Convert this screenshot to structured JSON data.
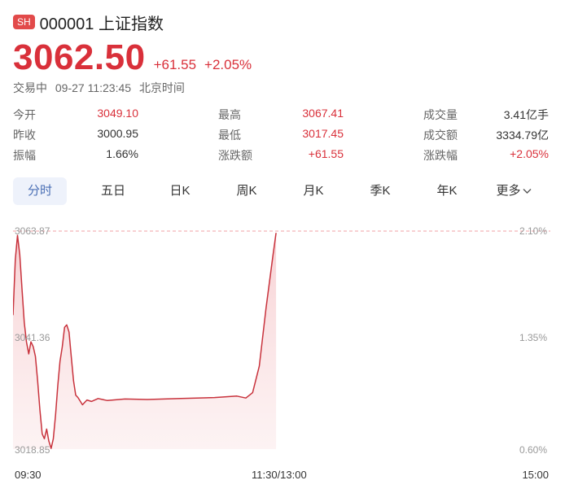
{
  "header": {
    "badge": "SH",
    "code_name": "000001 上证指数",
    "price": "3062.50",
    "change": "+61.55",
    "change_pct": "+2.05%",
    "status": "交易中",
    "datetime": "09-27 11:23:45",
    "timezone": "北京时间"
  },
  "stats": [
    [
      {
        "k": "今开",
        "v": "3049.10",
        "red": true
      },
      {
        "k": "最高",
        "v": "3067.41",
        "red": true
      },
      {
        "k": "成交量",
        "v": "3.41亿手",
        "red": false
      }
    ],
    [
      {
        "k": "昨收",
        "v": "3000.95",
        "red": false
      },
      {
        "k": "最低",
        "v": "3017.45",
        "red": true
      },
      {
        "k": "成交额",
        "v": "3334.79亿",
        "red": false
      }
    ],
    [
      {
        "k": "振幅",
        "v": "1.66%",
        "red": false
      },
      {
        "k": "涨跌额",
        "v": "+61.55",
        "red": true
      },
      {
        "k": "涨跌幅",
        "v": "+2.05%",
        "red": true
      }
    ]
  ],
  "tabs": [
    "分时",
    "五日",
    "日K",
    "周K",
    "月K",
    "季K",
    "年K",
    "更多"
  ],
  "colors": {
    "up": "#d9303a",
    "accent": "#4a6fb5"
  },
  "chart_data": {
    "type": "line",
    "y_labels_left": [
      "3063.87",
      "3041.36",
      "3018.85"
    ],
    "y_labels_right": [
      "2.10%",
      "1.35%",
      "0.60%"
    ],
    "x_labels": [
      "09:30",
      "11:30/13:00",
      "15:00"
    ],
    "ylim": [
      3018.85,
      3063.87
    ],
    "x_unit": "minutes since 09:30 (0-240 trading minutes)",
    "series": [
      {
        "values": [
          [
            0,
            3046.5
          ],
          [
            1,
            3058.0
          ],
          [
            2,
            3063.0
          ],
          [
            3,
            3059.0
          ],
          [
            4,
            3052.0
          ],
          [
            5,
            3045.0
          ],
          [
            6,
            3041.0
          ],
          [
            7,
            3038.5
          ],
          [
            8,
            3041.0
          ],
          [
            9,
            3040.0
          ],
          [
            10,
            3038.0
          ],
          [
            11,
            3033.0
          ],
          [
            12,
            3027.0
          ],
          [
            13,
            3022.0
          ],
          [
            14,
            3021.0
          ],
          [
            15,
            3023.0
          ],
          [
            16,
            3020.5
          ],
          [
            17,
            3019.0
          ],
          [
            18,
            3021.0
          ],
          [
            19,
            3026.0
          ],
          [
            20,
            3032.0
          ],
          [
            21,
            3037.0
          ],
          [
            22,
            3040.0
          ],
          [
            23,
            3044.0
          ],
          [
            24,
            3044.5
          ],
          [
            25,
            3043.0
          ],
          [
            26,
            3038.0
          ],
          [
            27,
            3033.0
          ],
          [
            28,
            3030.0
          ],
          [
            29,
            3029.5
          ],
          [
            31,
            3028.0
          ],
          [
            33,
            3029.0
          ],
          [
            35,
            3028.7
          ],
          [
            38,
            3029.3
          ],
          [
            42,
            3028.9
          ],
          [
            50,
            3029.2
          ],
          [
            60,
            3029.1
          ],
          [
            75,
            3029.3
          ],
          [
            90,
            3029.5
          ],
          [
            100,
            3029.8
          ],
          [
            104,
            3029.4
          ],
          [
            107,
            3030.5
          ],
          [
            110,
            3036.0
          ],
          [
            113,
            3048.0
          ],
          [
            116,
            3058.5
          ],
          [
            117.5,
            3063.5
          ]
        ]
      }
    ]
  }
}
